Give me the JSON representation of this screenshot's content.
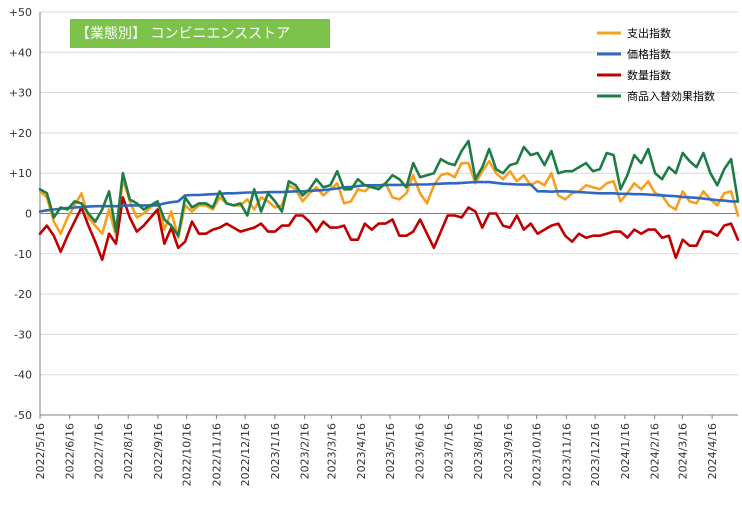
{
  "chart_data": {
    "type": "line",
    "title": "【業態別】 コンビニエンスストア",
    "colors": {
      "title_box": "#7dc24b",
      "axis": "#7f7f7f",
      "gridline": "#d9d9d9"
    },
    "ylim": [
      -50,
      50
    ],
    "y_ticks": [
      "+50",
      "+40",
      "+30",
      "+20",
      "+10",
      "0",
      "-10",
      "-20",
      "-30",
      "-40",
      "-50"
    ],
    "y_tick_values": [
      50,
      40,
      30,
      20,
      10,
      0,
      -10,
      -20,
      -30,
      -40,
      -50
    ],
    "x_ticks": [
      "2022/5/16",
      "2022/6/16",
      "2022/7/16",
      "2022/8/16",
      "2022/9/16",
      "2022/10/16",
      "2022/11/16",
      "2022/12/16",
      "2023/1/16",
      "2023/2/16",
      "2023/3/16",
      "2023/4/16",
      "2023/5/16",
      "2023/6/16",
      "2023/7/16",
      "2023/8/16",
      "2023/9/16",
      "2023/10/16",
      "2023/11/16",
      "2023/12/16",
      "2024/1/16",
      "2024/2/16",
      "2024/3/16",
      "2024/4/16"
    ],
    "x_start": "2022/5/16",
    "x_end": "2024/5/13",
    "legend_position": "top-right",
    "gridlines": "horizontal",
    "series": [
      {
        "name": "支出指数",
        "color": "#f5a01e",
        "values": [
          5.5,
          4.0,
          -2.0,
          -5.0,
          -1.0,
          2.0,
          5.0,
          -1.0,
          -3.0,
          -5.0,
          1.0,
          -5.5,
          8.5,
          3.0,
          -1.0,
          0.0,
          1.5,
          3.0,
          -4.0,
          0.5,
          -6.0,
          2.0,
          0.5,
          2.0,
          2.0,
          1.0,
          4.0,
          2.5,
          2.0,
          2.0,
          3.5,
          1.0,
          4.0,
          3.0,
          1.5,
          2.0,
          7.0,
          6.0,
          3.0,
          5.0,
          6.5,
          4.5,
          6.0,
          7.5,
          2.5,
          3.0,
          6.0,
          5.5,
          7.0,
          6.5,
          7.5,
          4.0,
          3.5,
          5.0,
          9.5,
          5.0,
          2.5,
          7.0,
          9.5,
          10.0,
          9.0,
          12.5,
          12.5,
          7.5,
          10.5,
          13.0,
          10.0,
          8.5,
          10.5,
          8.0,
          9.5,
          7.0,
          8.0,
          7.0,
          10.0,
          4.5,
          3.5,
          5.0,
          5.5,
          7.0,
          6.5,
          6.0,
          7.5,
          8.0,
          3.0,
          5.0,
          7.5,
          6.0,
          8.0,
          5.0,
          4.5,
          2.0,
          1.0,
          5.5,
          3.0,
          2.5,
          5.5,
          3.5,
          2.0,
          5.0,
          5.5,
          -0.5
        ]
      },
      {
        "name": "価格指数",
        "color": "#2e68c0",
        "values": [
          0.5,
          0.8,
          1.0,
          1.2,
          1.4,
          1.5,
          1.6,
          1.7,
          1.8,
          1.8,
          1.8,
          1.8,
          1.9,
          2.0,
          2.0,
          2.0,
          2.0,
          2.0,
          2.5,
          2.8,
          3.0,
          4.5,
          4.6,
          4.6,
          4.7,
          4.8,
          4.9,
          5.0,
          5.0,
          5.1,
          5.2,
          5.2,
          5.2,
          5.3,
          5.3,
          5.3,
          5.4,
          5.5,
          5.5,
          5.6,
          5.7,
          5.8,
          6.0,
          6.2,
          6.5,
          6.6,
          6.8,
          7.0,
          7.0,
          7.0,
          7.1,
          7.1,
          7.1,
          7.1,
          7.2,
          7.2,
          7.2,
          7.3,
          7.4,
          7.5,
          7.5,
          7.6,
          7.7,
          7.8,
          7.8,
          7.8,
          7.6,
          7.4,
          7.3,
          7.2,
          7.2,
          7.2,
          5.5,
          5.5,
          5.4,
          5.5,
          5.5,
          5.4,
          5.3,
          5.2,
          5.1,
          5.0,
          5.0,
          5.0,
          4.9,
          4.9,
          4.8,
          4.8,
          4.7,
          4.6,
          4.5,
          4.4,
          4.3,
          4.1,
          4.0,
          3.9,
          3.7,
          3.5,
          3.3,
          3.2,
          3.0,
          3.0
        ]
      },
      {
        "name": "数量指数",
        "color": "#c00000",
        "values": [
          -5.0,
          -3.0,
          -5.5,
          -9.5,
          -5.5,
          -2.0,
          1.5,
          -3.0,
          -7.0,
          -11.5,
          -5.0,
          -7.5,
          4.0,
          -1.0,
          -4.5,
          -3.0,
          -1.0,
          1.0,
          -7.5,
          -3.5,
          -8.5,
          -7.0,
          -2.0,
          -5.0,
          -5.0,
          -4.0,
          -3.5,
          -2.5,
          -3.5,
          -4.5,
          -4.0,
          -3.5,
          -2.5,
          -4.5,
          -4.5,
          -3.0,
          -3.0,
          -0.5,
          -0.5,
          -2.0,
          -4.5,
          -2.0,
          -3.5,
          -3.5,
          -3.0,
          -6.5,
          -6.5,
          -2.5,
          -4.0,
          -2.5,
          -2.5,
          -1.5,
          -5.5,
          -5.5,
          -4.5,
          -1.5,
          -5.0,
          -8.5,
          -4.5,
          -0.5,
          -0.5,
          -1.0,
          1.5,
          0.5,
          -3.5,
          0.0,
          0.0,
          -3.0,
          -3.5,
          -0.5,
          -4.0,
          -2.5,
          -5.0,
          -4.0,
          -3.0,
          -2.5,
          -5.5,
          -7.0,
          -5.0,
          -6.0,
          -5.5,
          -5.5,
          -5.0,
          -4.5,
          -4.5,
          -6.0,
          -4.0,
          -5.0,
          -4.0,
          -4.0,
          -6.0,
          -5.5,
          -11.0,
          -6.5,
          -8.0,
          -8.0,
          -4.5,
          -4.5,
          -5.5,
          -3.0,
          -2.5,
          -6.5
        ]
      },
      {
        "name": "商品入替効果指数",
        "color": "#1d7d47",
        "values": [
          6.0,
          5.0,
          -1.0,
          1.5,
          1.0,
          3.0,
          2.5,
          0.0,
          -2.0,
          1.0,
          5.5,
          -4.5,
          10.0,
          3.5,
          2.5,
          1.0,
          2.0,
          3.0,
          -1.5,
          -3.0,
          -5.5,
          4.0,
          1.5,
          2.5,
          2.5,
          1.5,
          5.5,
          2.5,
          2.0,
          2.5,
          -0.5,
          6.0,
          0.5,
          5.0,
          3.0,
          0.5,
          8.0,
          7.0,
          4.5,
          6.0,
          8.5,
          6.5,
          7.0,
          10.5,
          6.0,
          6.0,
          8.5,
          7.0,
          6.5,
          6.0,
          7.5,
          9.5,
          8.5,
          6.5,
          12.5,
          9.0,
          9.5,
          10.0,
          13.5,
          12.5,
          12.0,
          15.5,
          18.0,
          8.5,
          11.5,
          16.0,
          11.0,
          10.0,
          12.0,
          12.5,
          16.5,
          14.5,
          15.0,
          12.0,
          15.5,
          10.0,
          10.5,
          10.5,
          11.5,
          12.5,
          10.5,
          11.0,
          15.0,
          14.5,
          6.0,
          9.5,
          14.5,
          12.5,
          16.0,
          10.0,
          8.5,
          11.5,
          10.0,
          15.0,
          13.0,
          11.5,
          15.0,
          10.0,
          7.0,
          11.0,
          13.5,
          3.0
        ]
      }
    ]
  }
}
